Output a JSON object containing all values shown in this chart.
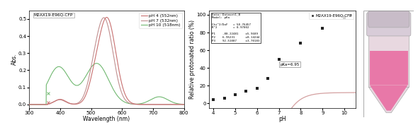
{
  "fig_width": 5.9,
  "fig_height": 1.84,
  "dpi": 100,
  "abs_title": "M2AX19-E96Q-CFP",
  "abs_xlabel": "Wavelength (nm)",
  "abs_ylabel": "Abs.",
  "abs_xlim": [
    300,
    800
  ],
  "abs_ylim": [
    -0.02,
    0.55
  ],
  "abs_yticks": [
    0.0,
    0.1,
    0.2,
    0.3,
    0.4,
    0.5
  ],
  "ph4_color": "#c87070",
  "ph7_color": "#c09090",
  "ph10_color": "#70b870",
  "ph4_label": "pH 4 (552nm)",
  "ph7_label": "pH 7 (532nm)",
  "ph10_label": "pH 10 (518nm)",
  "tit_title": "M2AX19-E96Q-CFP",
  "tit_xlabel": "pH",
  "tit_ylabel": "Relative protonated ratio (%)",
  "tit_xlim": [
    3.8,
    10.5
  ],
  "tit_ylim": [
    -5,
    105
  ],
  "tit_yticks": [
    0,
    20,
    40,
    60,
    80,
    100
  ],
  "tit_xticks": [
    4,
    5,
    6,
    7,
    8,
    9,
    10
  ],
  "scatter_x": [
    4.0,
    4.5,
    5.0,
    5.5,
    6.0,
    6.5,
    7.0,
    8.0,
    9.0,
    10.0,
    10.3
  ],
  "scatter_y": [
    4,
    6,
    10,
    14,
    17,
    28,
    50,
    68,
    85,
    97,
    99
  ],
  "pka_label": "pKa=6.95",
  "fit_text": "Data: Dataset1_B\nModel: pKa\n\nChi^2/DoF   = 58.76457\nR^2         = 0.97002\n\nP1    -80.22481    ±5.9689\nP2    6.95231      ±0.14244\nP3    92.51087     ±3.70183",
  "marker_color": "#222222",
  "curve_color": "#d4a0a0",
  "bg_color": "#ffffff"
}
